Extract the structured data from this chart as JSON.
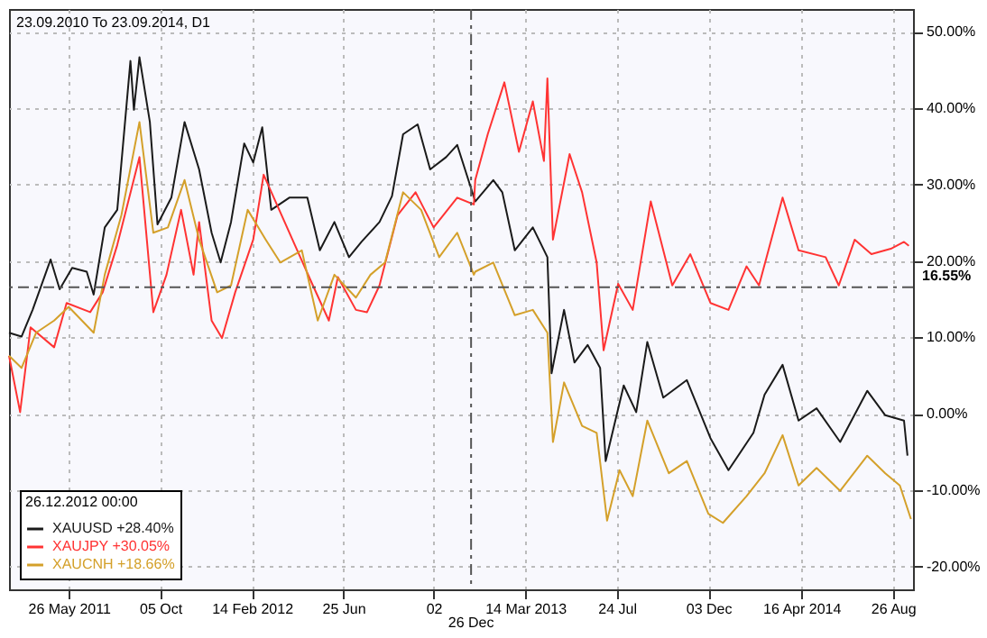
{
  "chart_data": {
    "type": "line",
    "title": "23.09.2010 To 23.09.2014, D1",
    "xlim": [
      "2011-03-01",
      "2014-09-24"
    ],
    "xticks": [
      {
        "value": "2011-05-26",
        "label": "26 May 2011"
      },
      {
        "value": "2011-10-05",
        "label": "05 Oct"
      },
      {
        "value": "2012-02-14",
        "label": "14 Feb 2012"
      },
      {
        "value": "2012-06-25",
        "label": "25 Jun"
      },
      {
        "value": "2012-11-02",
        "label": "02"
      },
      {
        "value": "2013-03-14",
        "label": "14 Mar 2013"
      },
      {
        "value": "2013-07-24",
        "label": "24 Jul"
      },
      {
        "value": "2013-12-03",
        "label": "03 Dec"
      },
      {
        "value": "2014-04-16",
        "label": "16 Apr 2014"
      },
      {
        "value": "2014-08-26",
        "label": "26 Aug"
      }
    ],
    "ylim": [
      -23,
      53
    ],
    "yticks": [
      {
        "value": -20,
        "label": "-20.00%"
      },
      {
        "value": -10,
        "label": "-10.00%"
      },
      {
        "value": 0,
        "label": "0.00%"
      },
      {
        "value": 10,
        "label": "10.00%"
      },
      {
        "value": 20,
        "label": "20.00%"
      },
      {
        "value": 30,
        "label": "30.00%"
      },
      {
        "value": 40,
        "label": "40.00%"
      },
      {
        "value": 50,
        "label": "50.00%"
      }
    ],
    "grid": true,
    "legend": "bottom left",
    "legend_title": "26.12.2012 00:00",
    "marker": "none",
    "line_style": "solid",
    "ref_lines": [
      {
        "axis": "x",
        "value": "2012-12-26",
        "label": "26 Dec",
        "line_style": "dashed",
        "color": "#555555"
      },
      {
        "axis": "y",
        "value": 16.55,
        "label": "16.55%",
        "line_style": "dashed",
        "color": "#555555"
      }
    ],
    "series": [
      {
        "name": "XAUUSD +28.40%",
        "color": "#1a1a1a",
        "x": [
          "2011-03-01",
          "2011-03-19",
          "2011-04-04",
          "2011-04-30",
          "2011-05-13",
          "2011-05-31",
          "2011-06-21",
          "2011-07-01",
          "2011-07-17",
          "2011-08-04",
          "2011-08-23",
          "2011-08-28",
          "2011-09-05",
          "2011-09-20",
          "2011-10-01",
          "2011-10-21",
          "2011-11-09",
          "2011-11-30",
          "2011-12-18",
          "2011-12-31",
          "2012-01-15",
          "2012-02-03",
          "2012-02-16",
          "2012-02-29",
          "2012-03-13",
          "2012-04-08",
          "2012-05-04",
          "2012-05-22",
          "2012-06-12",
          "2012-07-03",
          "2012-07-21",
          "2012-08-16",
          "2012-09-03",
          "2012-09-19",
          "2012-10-10",
          "2012-10-28",
          "2012-11-20",
          "2012-12-06",
          "2013-01-01",
          "2013-01-27",
          "2013-02-09",
          "2013-02-27",
          "2013-03-25",
          "2013-04-15",
          "2013-04-21",
          "2013-05-09",
          "2013-05-24",
          "2013-06-12",
          "2013-06-30",
          "2013-07-08",
          "2013-08-03",
          "2013-08-21",
          "2013-09-06",
          "2013-09-29",
          "2013-11-02",
          "2013-12-06",
          "2014-01-01",
          "2014-02-06",
          "2014-02-22",
          "2014-03-20",
          "2014-04-12",
          "2014-05-08",
          "2014-06-11",
          "2014-07-20",
          "2014-08-15",
          "2014-09-11",
          "2014-09-16"
        ],
        "values": [
          10.6,
          10.1,
          13.6,
          20.2,
          16.3,
          19.1,
          18.6,
          15.6,
          24.4,
          26.7,
          46.2,
          39.8,
          46.7,
          38.2,
          24.8,
          28.3,
          38.2,
          32.0,
          23.7,
          19.8,
          25.1,
          35.4,
          32.9,
          37.5,
          26.7,
          28.3,
          28.3,
          21.4,
          25.1,
          20.5,
          22.5,
          25.1,
          28.5,
          36.6,
          37.9,
          32.0,
          33.6,
          35.2,
          27.8,
          30.6,
          29.0,
          21.4,
          24.4,
          20.5,
          5.3,
          13.6,
          6.7,
          9.0,
          6.0,
          -6.2,
          3.7,
          0.2,
          9.4,
          2.1,
          4.4,
          -3.2,
          -7.4,
          -2.5,
          2.5,
          6.4,
          -0.9,
          0.7,
          -3.7,
          3.0,
          -0.2,
          -0.9,
          -5.5
        ]
      },
      {
        "name": "XAUJPY +30.05%",
        "color": "#ff3333",
        "x": [
          "2011-03-01",
          "2011-03-17",
          "2011-04-01",
          "2011-05-05",
          "2011-05-23",
          "2011-06-26",
          "2011-07-14",
          "2011-08-04",
          "2011-09-05",
          "2011-09-25",
          "2011-10-14",
          "2011-11-04",
          "2011-11-22",
          "2011-11-30",
          "2011-12-18",
          "2012-01-02",
          "2012-01-21",
          "2012-02-16",
          "2012-03-02",
          "2012-03-21",
          "2012-04-16",
          "2012-05-12",
          "2012-06-04",
          "2012-06-17",
          "2012-07-13",
          "2012-07-29",
          "2012-08-16",
          "2012-09-11",
          "2012-10-07",
          "2012-11-02",
          "2012-12-06",
          "2012-12-30",
          "2013-01-01",
          "2013-01-19",
          "2013-02-12",
          "2013-03-05",
          "2013-03-25",
          "2013-04-10",
          "2013-04-15",
          "2013-04-23",
          "2013-05-17",
          "2013-06-04",
          "2013-06-25",
          "2013-07-05",
          "2013-07-26",
          "2013-08-16",
          "2013-09-11",
          "2013-10-12",
          "2013-11-07",
          "2013-12-06",
          "2014-01-01",
          "2014-01-27",
          "2014-02-14",
          "2014-03-20",
          "2014-04-12",
          "2014-05-21",
          "2014-06-09",
          "2014-07-02",
          "2014-07-26",
          "2014-08-23",
          "2014-09-11",
          "2014-09-18"
        ],
        "values": [
          7.6,
          0.2,
          11.3,
          8.7,
          14.5,
          13.3,
          15.9,
          22.1,
          33.6,
          13.3,
          18.2,
          26.7,
          18.2,
          25.1,
          12.2,
          9.9,
          15.9,
          22.8,
          31.3,
          27.4,
          22.1,
          16.8,
          12.2,
          17.9,
          13.6,
          13.3,
          16.8,
          26.0,
          29.0,
          24.4,
          28.3,
          27.4,
          30.6,
          36.6,
          43.4,
          34.3,
          40.9,
          33.1,
          43.9,
          22.8,
          34.0,
          29.0,
          19.8,
          8.3,
          17.0,
          13.6,
          27.8,
          16.8,
          20.9,
          14.5,
          13.6,
          19.3,
          16.8,
          28.3,
          21.4,
          20.5,
          16.8,
          22.8,
          20.9,
          21.6,
          22.5,
          22.0
        ]
      },
      {
        "name": "XAUCNH +18.66%",
        "color": "#d4a02a",
        "x": [
          "2011-03-01",
          "2011-03-19",
          "2011-04-09",
          "2011-05-05",
          "2011-05-26",
          "2011-07-01",
          "2011-07-17",
          "2011-08-10",
          "2011-09-05",
          "2011-09-25",
          "2011-10-16",
          "2011-11-09",
          "2011-11-30",
          "2011-12-26",
          "2012-01-15",
          "2012-02-08",
          "2012-03-05",
          "2012-03-26",
          "2012-04-26",
          "2012-05-19",
          "2012-06-12",
          "2012-07-13",
          "2012-08-03",
          "2012-08-24",
          "2012-09-19",
          "2012-10-15",
          "2012-11-10",
          "2012-12-06",
          "2012-12-30",
          "2013-01-01",
          "2013-01-27",
          "2013-02-27",
          "2013-03-25",
          "2013-04-15",
          "2013-04-23",
          "2013-05-09",
          "2013-06-04",
          "2013-06-25",
          "2013-07-10",
          "2013-07-28",
          "2013-08-16",
          "2013-09-06",
          "2013-10-07",
          "2013-11-02",
          "2013-12-03",
          "2013-12-24",
          "2014-01-27",
          "2014-02-22",
          "2014-03-20",
          "2014-04-12",
          "2014-05-08",
          "2014-06-11",
          "2014-07-20",
          "2014-08-15",
          "2014-09-05",
          "2014-09-21"
        ],
        "values": [
          7.6,
          6.0,
          10.6,
          12.2,
          14.0,
          10.6,
          18.2,
          26.0,
          38.2,
          23.7,
          24.4,
          30.6,
          22.8,
          15.9,
          16.8,
          26.7,
          22.8,
          19.8,
          21.4,
          12.2,
          18.2,
          15.2,
          18.2,
          19.8,
          29.0,
          26.7,
          20.5,
          23.7,
          18.2,
          18.6,
          19.8,
          12.9,
          13.6,
          10.6,
          -3.7,
          4.1,
          -1.6,
          -2.5,
          -14.0,
          -7.4,
          -10.8,
          -0.9,
          -7.8,
          -6.2,
          -13.1,
          -14.3,
          -10.8,
          -7.8,
          -2.8,
          -9.4,
          -7.1,
          -10.1,
          -5.5,
          -7.8,
          -9.4,
          -13.8
        ]
      }
    ]
  }
}
